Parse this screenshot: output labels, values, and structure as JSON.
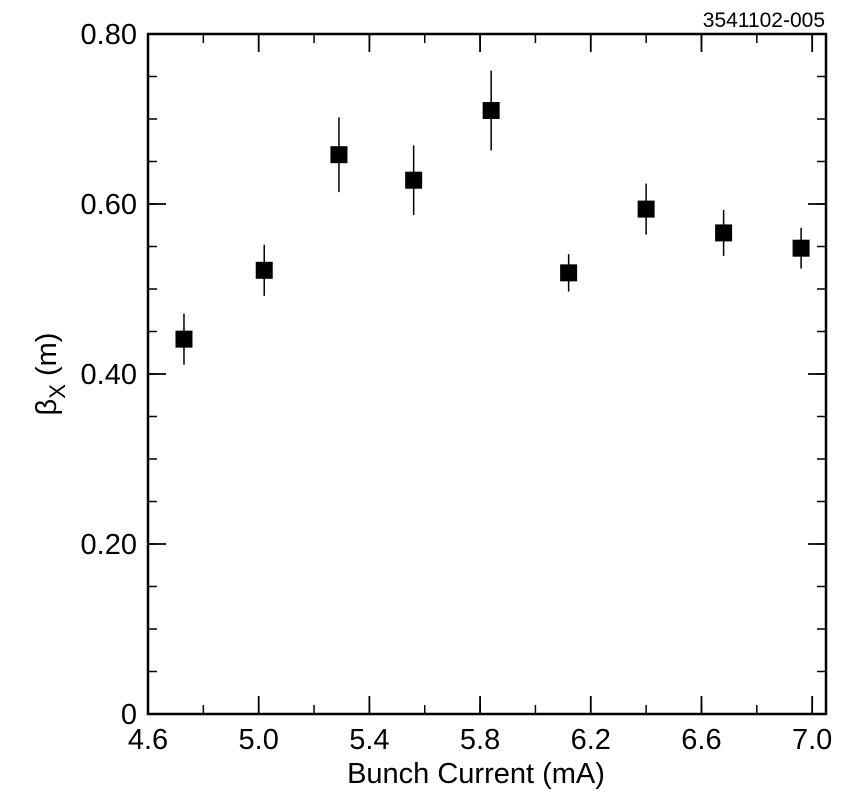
{
  "figure_id": "3541102-005",
  "chart_data": {
    "type": "scatter",
    "xlabel": "Bunch Current (mA)",
    "ylabel_main": "β",
    "ylabel_sub": "X",
    "ylabel_unit": " (m)",
    "xlim": [
      4.6,
      7.05
    ],
    "ylim": [
      0,
      0.8
    ],
    "x_ticks": [
      4.6,
      5.0,
      5.4,
      5.8,
      6.2,
      6.6,
      7.0
    ],
    "x_tick_labels": [
      "4.6",
      "5.0",
      "5.4",
      "5.8",
      "6.2",
      "6.6",
      "7.0"
    ],
    "x_minor_step": 0.2,
    "y_ticks": [
      0,
      0.2,
      0.4,
      0.6,
      0.8
    ],
    "y_tick_labels": [
      "0",
      "0.20",
      "0.40",
      "0.60",
      "0.80"
    ],
    "y_minor_step": 0.05,
    "grid": false,
    "marker": "square",
    "color": "#000000",
    "points": [
      {
        "x": 4.73,
        "y": 0.441,
        "err": 0.03
      },
      {
        "x": 5.02,
        "y": 0.522,
        "err": 0.03
      },
      {
        "x": 5.29,
        "y": 0.658,
        "err": 0.044
      },
      {
        "x": 5.56,
        "y": 0.628,
        "err": 0.041
      },
      {
        "x": 5.84,
        "y": 0.71,
        "err": 0.047
      },
      {
        "x": 6.12,
        "y": 0.519,
        "err": 0.022
      },
      {
        "x": 6.4,
        "y": 0.594,
        "err": 0.03
      },
      {
        "x": 6.68,
        "y": 0.566,
        "err": 0.027
      },
      {
        "x": 6.96,
        "y": 0.548,
        "err": 0.024
      }
    ]
  }
}
